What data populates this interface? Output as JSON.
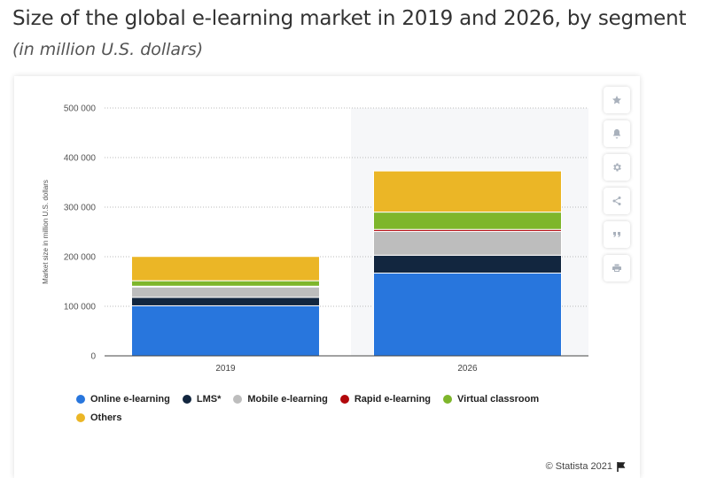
{
  "header": {
    "title": "Size of the global e-learning market in 2019 and 2026, by segment",
    "subtitle": "(in million U.S. dollars)"
  },
  "toolbar": {
    "buttons": [
      {
        "name": "favorite-button",
        "icon": "star-icon"
      },
      {
        "name": "notification-button",
        "icon": "bell-icon"
      },
      {
        "name": "settings-button",
        "icon": "gear-icon"
      },
      {
        "name": "share-button",
        "icon": "share-icon"
      },
      {
        "name": "cite-button",
        "icon": "quote-icon"
      },
      {
        "name": "print-button",
        "icon": "print-icon"
      }
    ]
  },
  "credit": "© Statista 2021",
  "chart_data": {
    "type": "bar",
    "stacked": true,
    "categories": [
      "2019",
      "2026"
    ],
    "ylabel": "Market size in million U.S. dollars",
    "ylim": [
      0,
      500000
    ],
    "yticks": [
      {
        "value": 0,
        "label": "0"
      },
      {
        "value": 100000,
        "label": "100 000"
      },
      {
        "value": 200000,
        "label": "200 000"
      },
      {
        "value": 300000,
        "label": "300 000"
      },
      {
        "value": 400000,
        "label": "400 000"
      },
      {
        "value": 500000,
        "label": "500 000"
      }
    ],
    "grid": true,
    "highlighted_category": "2026",
    "legend_position": "bottom",
    "series": [
      {
        "name": "Online e-learning",
        "color": "#2876dd",
        "values": [
          101000,
          167000
        ]
      },
      {
        "name": "LMS*",
        "color": "#12263f",
        "values": [
          17000,
          36000
        ]
      },
      {
        "name": "Mobile e-learning",
        "color": "#bdbdbd",
        "values": [
          21000,
          48000
        ]
      },
      {
        "name": "Rapid e-learning",
        "color": "#b2080b",
        "values": [
          1500,
          4000
        ]
      },
      {
        "name": "Virtual classroom",
        "color": "#7eb62b",
        "values": [
          11000,
          35000
        ]
      },
      {
        "name": "Others",
        "color": "#ebb626",
        "values": [
          49000,
          83000
        ]
      }
    ]
  }
}
